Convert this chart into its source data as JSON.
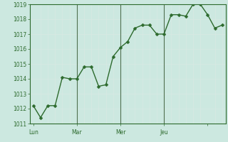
{
  "y_values": [
    1012.2,
    1011.4,
    1012.2,
    1012.2,
    1014.1,
    1014.0,
    1014.0,
    1014.8,
    1014.8,
    1013.5,
    1013.6,
    1015.5,
    1016.1,
    1016.5,
    1017.4,
    1017.6,
    1017.6,
    1017.0,
    1017.0,
    1018.3,
    1018.3,
    1018.2,
    1019.0,
    1019.0,
    1018.3,
    1017.4,
    1017.6
  ],
  "day_positions": [
    0,
    6,
    12,
    18,
    24
  ],
  "day_labels": [
    "Lun",
    "Mar",
    "Mer",
    "Jeu",
    ""
  ],
  "y_min": 1011,
  "y_max": 1019,
  "y_ticks": [
    1011,
    1012,
    1013,
    1014,
    1015,
    1016,
    1017,
    1018,
    1019
  ],
  "line_color": "#2d6a2d",
  "marker_color": "#2d6a2d",
  "bg_color": "#cce8e0",
  "grid_major_color": "#b0c8c0",
  "grid_minor_color": "#d8e8e4",
  "day_line_color": "#507050",
  "spine_color": "#2d6a2d",
  "tick_color": "#2d6a2d",
  "marker_size": 2.5,
  "line_width": 1.0
}
